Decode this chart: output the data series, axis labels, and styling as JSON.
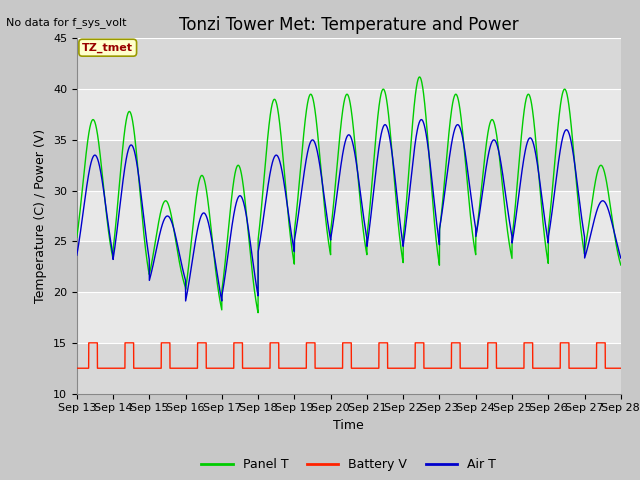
{
  "title": "Tonzi Tower Met: Temperature and Power",
  "no_data_text": "No data for f_sys_volt",
  "annotation_text": "TZ_tmet",
  "ylabel": "Temperature (C) / Power (V)",
  "xlabel": "Time",
  "xlim_days": [
    13,
    28
  ],
  "ylim": [
    10,
    45
  ],
  "yticks": [
    10,
    15,
    20,
    25,
    30,
    35,
    40,
    45
  ],
  "xtick_labels": [
    "Sep 13",
    "Sep 14",
    "Sep 15",
    "Sep 16",
    "Sep 17",
    "Sep 18",
    "Sep 19",
    "Sep 20",
    "Sep 21",
    "Sep 22",
    "Sep 23",
    "Sep 24",
    "Sep 25",
    "Sep 26",
    "Sep 27",
    "Sep 28"
  ],
  "panel_color": "#00cc00",
  "battery_color": "#ff2200",
  "air_color": "#0000cc",
  "legend_labels": [
    "Panel T",
    "Battery V",
    "Air T"
  ],
  "fig_bg_color": "#c8c8c8",
  "plot_bg_color": "#e8e8e8",
  "grid_color": "#ffffff",
  "title_fontsize": 12,
  "label_fontsize": 9,
  "tick_fontsize": 8,
  "annotation_color": "#990000",
  "annotation_bg": "#ffffcc",
  "annotation_edge": "#999900"
}
